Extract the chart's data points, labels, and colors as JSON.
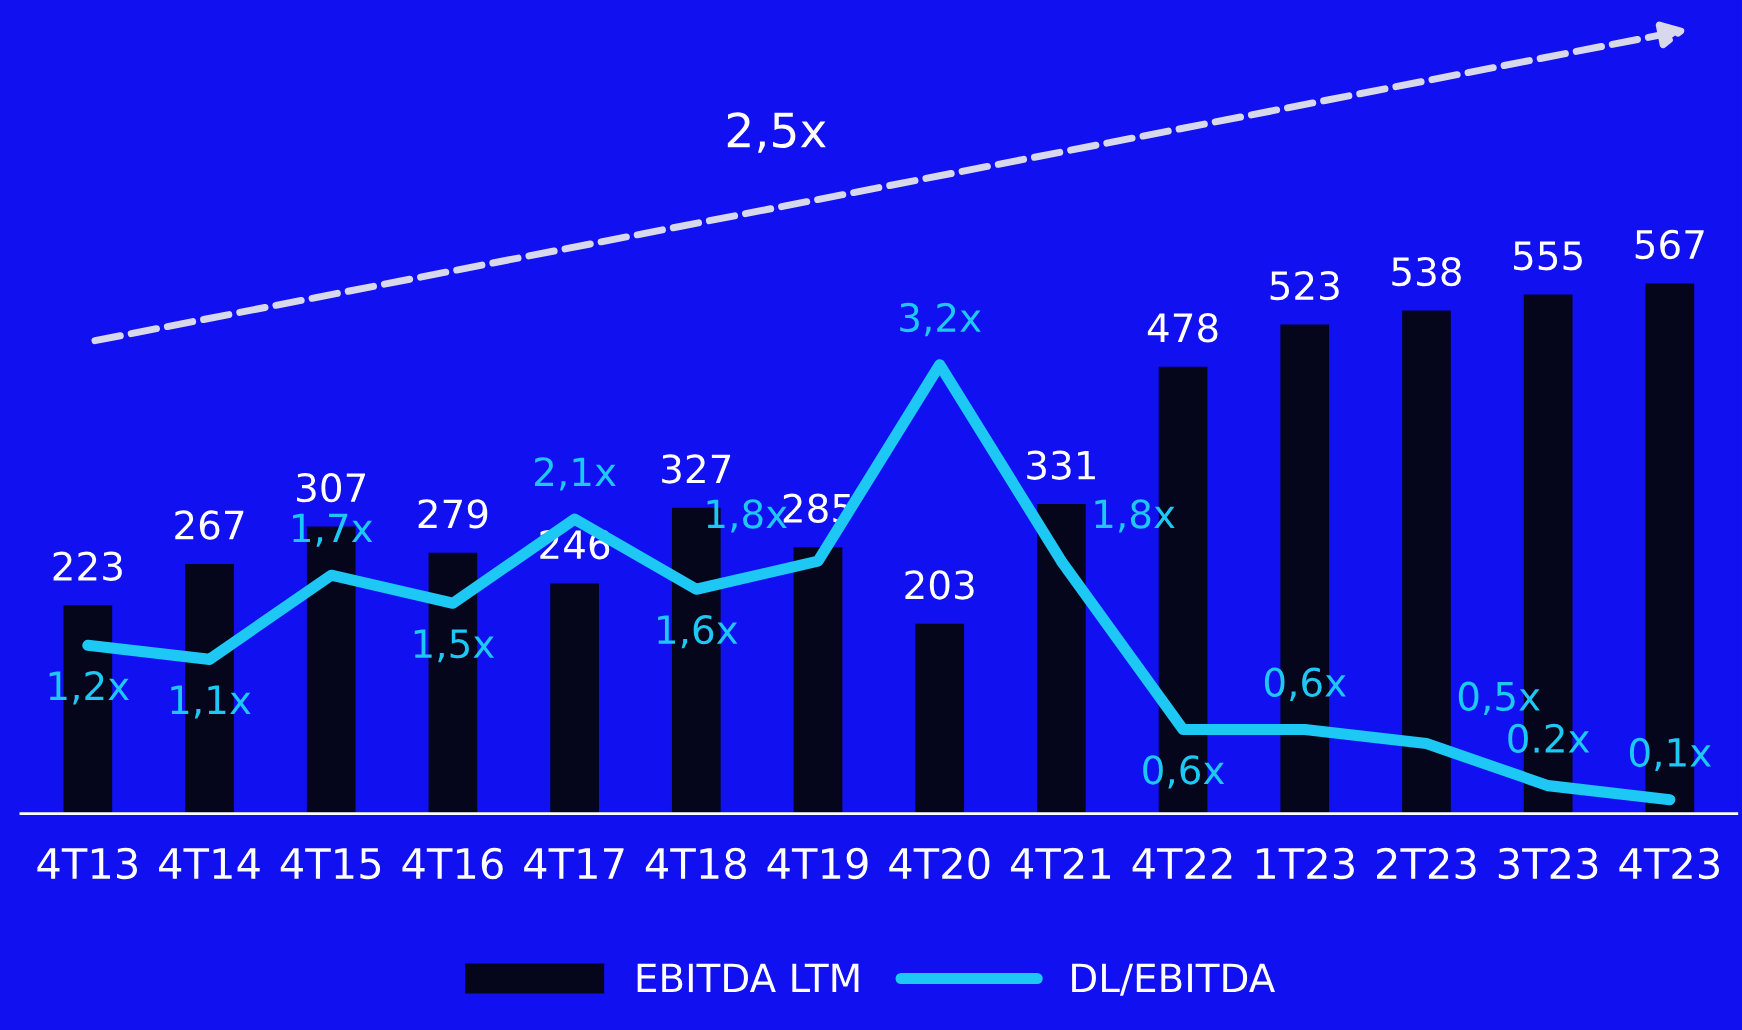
{
  "chart_data": {
    "type": "bar",
    "categories": [
      "4T13",
      "4T14",
      "4T15",
      "4T16",
      "4T17",
      "4T18",
      "4T19",
      "4T20",
      "4T21",
      "4T22",
      "1T23",
      "2T23",
      "3T23",
      "4T23"
    ],
    "series": [
      {
        "name": "EBITDA LTM",
        "color": "#05061c",
        "values": [
          223,
          267,
          307,
          279,
          246,
          327,
          285,
          203,
          331,
          478,
          523,
          538,
          555,
          567
        ]
      },
      {
        "name": "DL/EBITDA",
        "type": "line",
        "axis": "y2",
        "color": "#1ec8f5",
        "values": [
          1.2,
          1.1,
          1.7,
          1.5,
          2.1,
          1.6,
          1.8,
          3.2,
          1.8,
          0.6,
          0.6,
          0.5,
          0.2,
          0.1
        ],
        "value_labels": [
          "1,2x",
          "1,1x",
          "1,7x",
          "1,5x",
          "2,1x",
          "1,6x",
          "1,8x",
          "3,2x",
          "1,8x",
          "0,6x",
          "0,6x",
          "0,5x",
          "0.2x",
          "0,1x"
        ]
      }
    ],
    "data_labels": true,
    "ylim": [
      0,
      870
    ],
    "y2lim": [
      0,
      5.8
    ],
    "tick_labels": "x",
    "grid": false,
    "legend": "bottom",
    "line_style": "solid",
    "marker": "none",
    "annotations": [
      "2,5x"
    ]
  }
}
